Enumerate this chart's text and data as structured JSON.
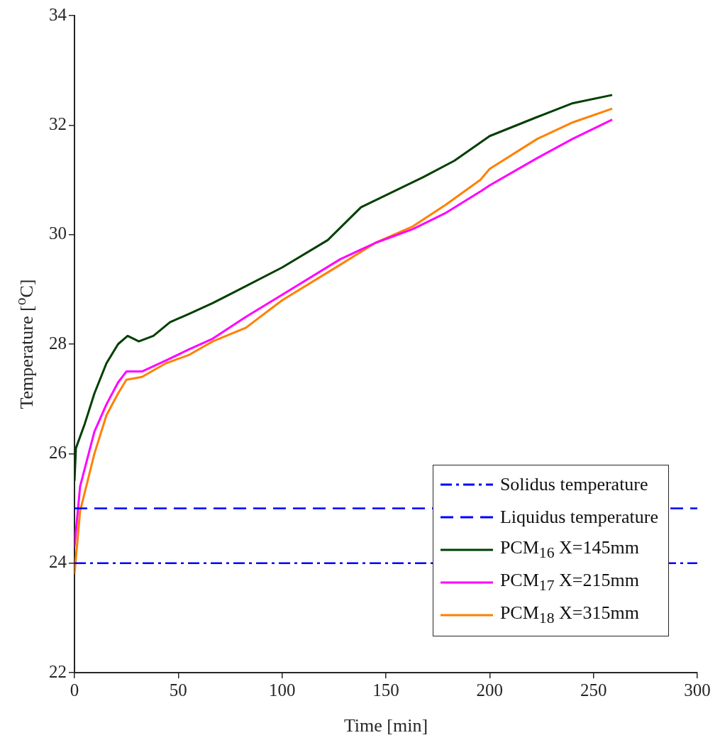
{
  "chart_data": {
    "type": "line",
    "xlabel": "Time [min]",
    "ylabel": "Temperature [$^{o}$C]",
    "xlim": [
      0,
      300
    ],
    "xticks": [
      0,
      50,
      100,
      150,
      200,
      250,
      300
    ],
    "ylim": [
      22,
      34
    ],
    "yticks": [
      22,
      24,
      26,
      28,
      30,
      32,
      34
    ],
    "grid": false,
    "legend": "bottom right",
    "marker": "none",
    "ref_lines": [
      {
        "axis": "y",
        "value": 24,
        "label": "Solidus temperature",
        "color": "#0000ff",
        "line_style": "dashdot"
      },
      {
        "axis": "y",
        "value": 25,
        "label": "Liquidus temperature",
        "color": "#0000ff",
        "line_style": "dashed"
      }
    ],
    "series": [
      {
        "name": "PCM$_{16}$ X=145mm",
        "color": "#003f00",
        "x": [
          0,
          0.7,
          5,
          9.6,
          15.4,
          21,
          25.6,
          31,
          38,
          46,
          55,
          66.6,
          77,
          100,
          122,
          138,
          168,
          183,
          200,
          223,
          240,
          259
        ],
        "values": [
          25.5,
          26.1,
          26.55,
          27.1,
          27.65,
          28.0,
          28.15,
          28.05,
          28.15,
          28.4,
          28.55,
          28.75,
          28.95,
          29.4,
          29.9,
          30.5,
          31.05,
          31.35,
          31.8,
          32.15,
          32.4,
          32.55
        ]
      },
      {
        "name": "PCM$_{17}$ X=215mm",
        "color": "#ff00ff",
        "x": [
          0,
          2.7,
          9.6,
          15.4,
          21,
          25,
          32.5,
          44,
          55,
          66.6,
          82.6,
          100,
          128,
          145,
          163,
          179,
          196,
          200,
          223,
          240,
          259
        ],
        "values": [
          24.3,
          25.4,
          26.4,
          26.9,
          27.3,
          27.5,
          27.5,
          27.7,
          27.9,
          28.1,
          28.5,
          28.9,
          29.55,
          29.85,
          30.1,
          30.4,
          30.8,
          30.9,
          31.4,
          31.75,
          32.1
        ]
      },
      {
        "name": "PCM$_{18}$ X=315mm",
        "color": "#ff8000",
        "x": [
          0,
          2.7,
          9.6,
          15.4,
          21,
          25,
          32.5,
          44,
          55,
          66.6,
          82.6,
          100,
          128,
          145,
          163,
          179,
          195.5,
          200,
          223,
          240,
          259
        ],
        "values": [
          23.8,
          24.95,
          26.0,
          26.7,
          27.1,
          27.35,
          27.4,
          27.65,
          27.8,
          28.05,
          28.3,
          28.8,
          29.45,
          29.85,
          30.15,
          30.55,
          31.0,
          31.2,
          31.75,
          32.05,
          32.3
        ]
      }
    ]
  }
}
